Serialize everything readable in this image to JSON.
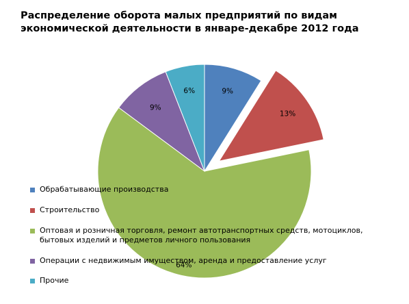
{
  "chart_data": {
    "type": "pie",
    "title": "Распределение оборота малых предприятий по видам экономической деятельности в январе-декабре 2012 года",
    "categories": [
      "Обрабатывающие производства",
      "Строительство",
      "Оптовая и розничная торговля, ремонт автотранспортных средств, мотоциклов, бытовых изделий и предметов личного пользования",
      "Операции с недвижимым имуществом, аренда и предоставление услуг",
      "Прочие"
    ],
    "values": [
      9,
      13,
      64,
      9,
      6
    ],
    "labels": [
      "9%",
      "13%",
      "64%",
      "9%",
      "6%"
    ],
    "colors": [
      "#4f81bd",
      "#c0504d",
      "#9bbb59",
      "#8064a2",
      "#4bacc6"
    ],
    "exploded": [
      false,
      true,
      false,
      false,
      false
    ],
    "legend_position": "left-overlay"
  }
}
